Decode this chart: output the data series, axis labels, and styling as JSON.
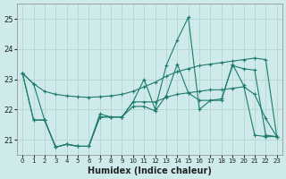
{
  "xlabel": "Humidex (Indice chaleur)",
  "bg_color": "#ceeaea",
  "grid_color": "#b8d8d8",
  "line_color": "#1e7b6e",
  "xlim": [
    -0.5,
    23.5
  ],
  "ylim": [
    20.5,
    25.5
  ],
  "yticks": [
    21,
    22,
    23,
    24,
    25
  ],
  "xticks": [
    0,
    1,
    2,
    3,
    4,
    5,
    6,
    7,
    8,
    9,
    10,
    11,
    12,
    13,
    14,
    15,
    16,
    17,
    18,
    19,
    20,
    21,
    22,
    23
  ],
  "series": [
    [
      23.2,
      22.85,
      22.6,
      22.5,
      22.45,
      22.42,
      22.4,
      22.42,
      22.45,
      22.5,
      22.6,
      22.75,
      22.9,
      23.1,
      23.25,
      23.35,
      23.45,
      23.5,
      23.55,
      23.6,
      23.65,
      23.7,
      23.65,
      21.1
    ],
    [
      23.2,
      22.85,
      21.65,
      20.75,
      20.85,
      20.78,
      20.78,
      21.85,
      21.75,
      21.75,
      22.25,
      22.25,
      22.25,
      22.4,
      22.5,
      22.55,
      22.6,
      22.65,
      22.65,
      22.7,
      22.75,
      22.5,
      21.7,
      21.1
    ],
    [
      23.2,
      21.65,
      21.65,
      20.75,
      20.85,
      20.78,
      20.78,
      21.75,
      21.75,
      21.75,
      22.25,
      23.0,
      22.0,
      23.45,
      24.3,
      25.05,
      22.0,
      22.3,
      22.3,
      23.5,
      22.8,
      21.15,
      21.1,
      21.1
    ],
    [
      23.2,
      21.65,
      21.65,
      20.75,
      20.85,
      20.78,
      20.78,
      21.75,
      21.75,
      21.75,
      22.1,
      22.1,
      21.95,
      22.45,
      23.5,
      22.55,
      22.3,
      22.3,
      22.35,
      23.45,
      23.35,
      23.3,
      21.15,
      21.1
    ]
  ]
}
